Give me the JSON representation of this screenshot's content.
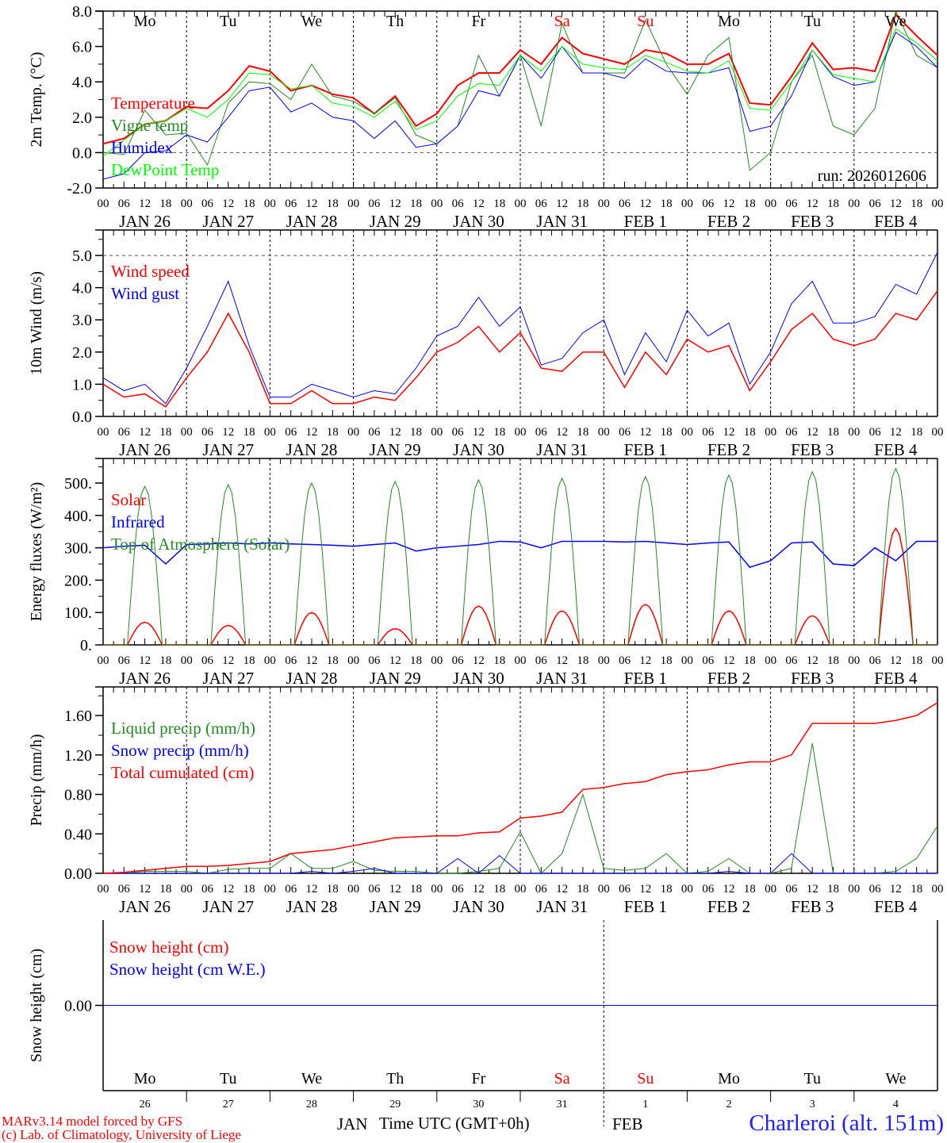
{
  "title": "MAR meteogram",
  "run_label": "run: 2026012606",
  "station": "Charleroi (alt. 151m)",
  "footer": [
    "MARv3.14 model forced by GFS",
    "(c) Lab. of Climatology, University of Liege"
  ],
  "x_axis": {
    "label": "Time UTC (GMT+0h)",
    "hour_ticks": [
      "00",
      "06",
      "12",
      "18"
    ],
    "dates": [
      "JAN 26",
      "JAN 27",
      "JAN 28",
      "JAN 29",
      "JAN 30",
      "JAN 31",
      "FEB  1",
      "FEB  2",
      "FEB  3",
      "FEB  4"
    ],
    "day_names": [
      "Mo",
      "Tu",
      "We",
      "Th",
      "Fr",
      "Sa",
      "Su",
      "Mo",
      "Tu",
      "We"
    ],
    "weekend_days": [
      "Sa",
      "Su"
    ],
    "day_numbers": [
      "26",
      "27",
      "28",
      "29",
      "30",
      "31",
      "1",
      "2",
      "3",
      "4"
    ],
    "months": [
      "JAN",
      "FEB"
    ]
  },
  "colors": {
    "red": "#ff0000",
    "green": "#228b22",
    "blue": "#0000ff",
    "lightgreen": "#00ff00",
    "axis": "#000000"
  },
  "chart_data": [
    {
      "type": "line",
      "id": "temp",
      "ylabel": "2m Temp. (°C)",
      "ylim": [
        -2,
        8
      ],
      "yticks": [
        "-2.0",
        "0.0",
        "2.0",
        "4.0",
        "6.0",
        "8.0"
      ],
      "ytick_values": [
        -2,
        0,
        2,
        4,
        6,
        8
      ],
      "reference_line": 0,
      "x_hours_step": 6,
      "series": [
        {
          "name": "Temperature",
          "color": "#ff0000",
          "width": 2,
          "values": [
            0.5,
            0.8,
            1.6,
            1.8,
            2.6,
            2.5,
            3.5,
            4.9,
            4.6,
            3.5,
            3.8,
            3.3,
            3.1,
            2.2,
            3.2,
            1.5,
            2.2,
            3.8,
            4.5,
            4.5,
            5.8,
            5.0,
            6.5,
            5.6,
            5.3,
            5.0,
            5.8,
            5.6,
            5.0,
            5.0,
            5.6,
            2.8,
            2.7,
            4.3,
            6.2,
            4.7,
            4.8,
            4.6,
            7.8,
            6.6,
            5.5
          ]
        },
        {
          "name": "Vigne temp",
          "color": "#228b22",
          "width": 1,
          "values": [
            0.0,
            -0.1,
            2.4,
            1.0,
            1.1,
            -0.7,
            2.8,
            4.0,
            3.9,
            3.0,
            5.0,
            3.2,
            2.9,
            2.2,
            3.1,
            1.0,
            0.5,
            1.5,
            5.5,
            3.2,
            5.5,
            1.5,
            7.3,
            4.5,
            4.5,
            4.5,
            7.5,
            5.0,
            3.3,
            5.5,
            6.5,
            -1.0,
            0.0,
            4.0,
            5.5,
            1.5,
            1.0,
            2.5,
            8.0,
            5.5,
            4.8
          ]
        },
        {
          "name": "Humidex",
          "color": "#0000ff",
          "width": 1,
          "values": [
            -1.5,
            -1.2,
            0.0,
            0.1,
            1.0,
            0.6,
            2.0,
            3.5,
            3.7,
            2.3,
            2.8,
            2.0,
            1.8,
            0.8,
            1.8,
            0.3,
            0.5,
            1.5,
            3.5,
            3.2,
            5.5,
            4.2,
            6.0,
            4.5,
            4.5,
            4.2,
            5.3,
            4.6,
            4.5,
            4.5,
            4.8,
            1.2,
            1.5,
            3.2,
            5.8,
            4.3,
            3.8,
            4.0,
            6.8,
            6.0,
            4.8
          ]
        },
        {
          "name": "DewPoint Temp",
          "color": "#00ff00",
          "width": 1,
          "values": [
            -0.2,
            0.7,
            1.6,
            1.8,
            2.5,
            2.0,
            3.0,
            4.5,
            4.4,
            3.6,
            3.8,
            2.8,
            2.6,
            2.0,
            2.9,
            1.3,
            1.8,
            3.2,
            3.9,
            3.8,
            5.5,
            4.6,
            6.0,
            5.0,
            4.8,
            4.7,
            5.5,
            5.1,
            4.6,
            4.5,
            5.2,
            2.5,
            2.4,
            4.0,
            5.8,
            4.4,
            4.2,
            4.0,
            7.0,
            6.2,
            5.2
          ]
        }
      ]
    },
    {
      "type": "line",
      "id": "wind",
      "ylabel": "10m Wind (m/s)",
      "ylim": [
        0,
        5.79
      ],
      "yticks": [
        "0.0",
        "1.0",
        "2.0",
        "3.0",
        "4.0",
        "5.0"
      ],
      "ytick_values": [
        0,
        1,
        2,
        3,
        4,
        5
      ],
      "reference_line": 5,
      "x_hours_step": 6,
      "series": [
        {
          "name": "Wind speed",
          "color": "#ff0000",
          "width": 1.5,
          "values": [
            1.0,
            0.6,
            0.7,
            0.3,
            1.2,
            2.0,
            3.2,
            2.0,
            0.4,
            0.4,
            0.8,
            0.4,
            0.4,
            0.6,
            0.5,
            1.2,
            2.0,
            2.3,
            2.8,
            2.0,
            2.6,
            1.5,
            1.4,
            2.0,
            2.0,
            0.9,
            2.0,
            1.3,
            2.4,
            2.0,
            2.2,
            0.8,
            1.7,
            2.7,
            3.2,
            2.4,
            2.2,
            2.4,
            3.2,
            3.0,
            3.9
          ]
        },
        {
          "name": "Wind gust",
          "color": "#0000ff",
          "width": 1,
          "values": [
            1.2,
            0.8,
            1.0,
            0.4,
            1.5,
            2.8,
            4.2,
            2.2,
            0.6,
            0.6,
            1.0,
            0.8,
            0.6,
            0.8,
            0.7,
            1.5,
            2.5,
            2.8,
            3.7,
            2.8,
            3.4,
            1.6,
            1.8,
            2.6,
            3.0,
            1.3,
            2.6,
            1.7,
            3.3,
            2.5,
            2.9,
            1.0,
            2.0,
            3.5,
            4.2,
            2.9,
            2.9,
            3.1,
            4.1,
            3.8,
            5.1
          ]
        }
      ]
    },
    {
      "type": "line",
      "id": "energy",
      "ylabel": "Energy fluxes (W/m²)",
      "ylim": [
        0,
        576
      ],
      "yticks": [
        "0.",
        "100.",
        "200.",
        "300.",
        "400.",
        "500."
      ],
      "ytick_values": [
        0,
        100,
        200,
        300,
        400,
        500
      ],
      "x_hours_step": 6,
      "series": [
        {
          "name": "Solar",
          "color": "#ff0000",
          "width": 1.5,
          "diurnal": true,
          "daily_peaks": [
            70,
            60,
            100,
            50,
            120,
            105,
            125,
            105,
            90,
            360
          ]
        },
        {
          "name": "Infrared",
          "color": "#0000ff",
          "width": 1.5,
          "values": [
            300,
            305,
            308,
            250,
            310,
            312,
            315,
            312,
            315,
            312,
            310,
            308,
            305,
            310,
            315,
            290,
            300,
            305,
            310,
            320,
            318,
            300,
            320,
            320,
            320,
            318,
            320,
            315,
            310,
            315,
            318,
            240,
            260,
            315,
            318,
            250,
            245,
            300,
            260,
            320,
            320
          ]
        },
        {
          "name": "Top of Atmosphere (Solar)",
          "color": "#228b22",
          "width": 1,
          "diurnal": true,
          "daily_peaks": [
            490,
            495,
            500,
            505,
            510,
            515,
            520,
            525,
            535,
            545
          ]
        }
      ]
    },
    {
      "type": "line",
      "id": "precip",
      "ylabel": "Precip (mm/h)",
      "ylim": [
        0,
        1.89
      ],
      "yticks": [
        "0.00",
        "0.40",
        "0.80",
        "1.20",
        "1.60"
      ],
      "ytick_values": [
        0,
        0.4,
        0.8,
        1.2,
        1.6
      ],
      "x_hours_step": 6,
      "series": [
        {
          "name": "Liquid precip (mm/h)",
          "color": "#228b22",
          "width": 1,
          "values": [
            0,
            0,
            0.02,
            0.02,
            0.02,
            0,
            0.04,
            0.05,
            0.05,
            0.2,
            0.05,
            0.05,
            0.12,
            0.03,
            0.02,
            0.02,
            0,
            0,
            0.02,
            0.05,
            0.42,
            0,
            0.2,
            0.8,
            0.05,
            0.03,
            0.05,
            0.2,
            0,
            0.02,
            0.15,
            0,
            0,
            0.05,
            1.32,
            0,
            0,
            0,
            0.02,
            0.15,
            0.48
          ]
        },
        {
          "name": "Snow precip (mm/h)",
          "color": "#0000ff",
          "width": 1,
          "values": [
            0,
            0,
            0,
            0,
            0,
            0,
            0,
            0,
            0,
            0,
            0.02,
            0,
            0.02,
            0.05,
            0,
            0,
            0,
            0.15,
            0,
            0.18,
            0,
            0,
            0,
            0,
            0,
            0,
            0,
            0,
            0,
            0,
            0.02,
            0,
            0,
            0.2,
            0,
            0,
            0,
            0,
            0,
            0,
            0
          ]
        },
        {
          "name": "Total cumulated (cm)",
          "color": "#ff0000",
          "width": 1.5,
          "values": [
            0,
            0.01,
            0.03,
            0.05,
            0.07,
            0.07,
            0.08,
            0.1,
            0.12,
            0.2,
            0.22,
            0.24,
            0.28,
            0.32,
            0.36,
            0.37,
            0.38,
            0.38,
            0.41,
            0.42,
            0.56,
            0.58,
            0.62,
            0.85,
            0.87,
            0.91,
            0.93,
            1.0,
            1.03,
            1.05,
            1.1,
            1.13,
            1.13,
            1.2,
            1.52,
            1.52,
            1.52,
            1.52,
            1.55,
            1.6,
            1.73
          ]
        }
      ]
    },
    {
      "type": "line",
      "id": "snow",
      "ylabel": "Snow height (cm)",
      "ylim": [
        -1,
        1
      ],
      "yticks": [
        "0.00"
      ],
      "ytick_values": [
        0
      ],
      "x_hours_step": 240,
      "series": [
        {
          "name": "Snow height (cm)",
          "color": "#ff0000",
          "width": 1,
          "values": [
            0,
            0
          ]
        },
        {
          "name": "Snow height (cm W.E.)",
          "color": "#0000ff",
          "width": 1,
          "values": [
            0,
            0
          ]
        }
      ]
    }
  ]
}
